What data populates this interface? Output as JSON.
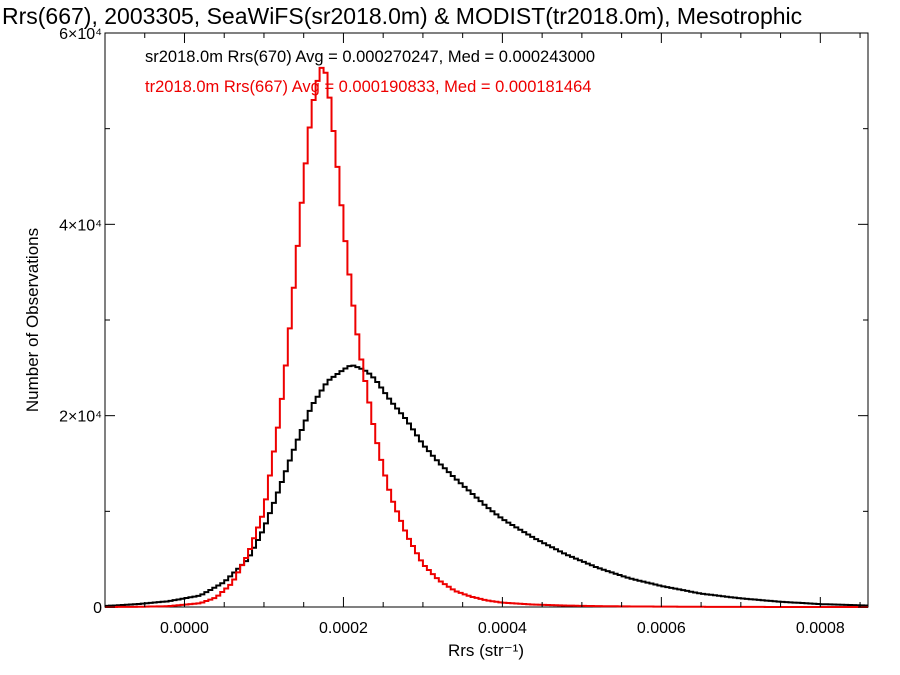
{
  "chart_data": {
    "type": "line",
    "title": "Rrs(667), 2003305, SeaWiFS(sr2018.0m) & MODIST(tr2018.0m), Mesotrophic",
    "xlabel": "Rrs (str⁻¹)",
    "ylabel": "Number of Observations",
    "xlim": [
      -0.0001,
      0.00086
    ],
    "ylim": [
      0,
      60000
    ],
    "x_ticks": [
      {
        "value": 0.0,
        "label": "0.0000"
      },
      {
        "value": 0.0002,
        "label": "0.0002"
      },
      {
        "value": 0.0004,
        "label": "0.0004"
      },
      {
        "value": 0.0006,
        "label": "0.0006"
      },
      {
        "value": 0.0008,
        "label": "0.0008"
      }
    ],
    "y_ticks": [
      {
        "value": 0,
        "label": "0"
      },
      {
        "value": 20000,
        "label": "2×10⁴"
      },
      {
        "value": 40000,
        "label": "4×10⁴"
      },
      {
        "value": 60000,
        "label": "6×10⁴"
      }
    ],
    "legend_position": "top-left",
    "grid": false,
    "series": [
      {
        "name": "sr2018.0m Rrs(670) Avg = 0.000270247, Med = 0.000243000",
        "color": "#000000",
        "step": true,
        "x": [
          -0.0001,
          -6e-05,
          -2e-05,
          2e-05,
          5e-05,
          8e-05,
          0.0001,
          0.00012,
          0.00014,
          0.00016,
          0.00018,
          0.0002,
          0.00021,
          0.00022,
          0.00023,
          0.00024,
          0.00026,
          0.00028,
          0.0003,
          0.00032,
          0.00034,
          0.00036,
          0.00038,
          0.0004,
          0.00044,
          0.00048,
          0.00052,
          0.00056,
          0.0006,
          0.00065,
          0.0007,
          0.00075,
          0.0008,
          0.00086
        ],
        "y": [
          100,
          300,
          600,
          1200,
          2600,
          5000,
          8200,
          12500,
          17000,
          21000,
          23600,
          24800,
          25300,
          25000,
          24600,
          23800,
          21500,
          19500,
          17000,
          15100,
          13500,
          12000,
          10500,
          9200,
          7200,
          5500,
          4100,
          3000,
          2200,
          1400,
          900,
          550,
          300,
          150
        ]
      },
      {
        "name": "tr2018.0m Rrs(667) Avg = 0.000190833, Med = 0.000181464",
        "color": "#ee0000",
        "step": true,
        "x": [
          -0.0001,
          -6e-05,
          -2e-05,
          2e-05,
          4e-05,
          6e-05,
          8e-05,
          0.0001,
          0.00012,
          0.00013,
          0.00014,
          0.00015,
          0.00016,
          0.00017,
          0.000175,
          0.00018,
          0.00019,
          0.0002,
          0.00021,
          0.00022,
          0.00023,
          0.00024,
          0.00025,
          0.00026,
          0.00028,
          0.0003,
          0.00032,
          0.00034,
          0.00036,
          0.00038,
          0.0004,
          0.00044,
          0.00048,
          0.00052,
          0.00056,
          0.0006,
          0.00065,
          0.0007,
          0.00075,
          0.0008,
          0.00086
        ],
        "y": [
          0,
          20,
          80,
          400,
          1000,
          2500,
          5500,
          10000,
          20000,
          27000,
          35500,
          44500,
          52000,
          56000,
          56700,
          55000,
          48000,
          40000,
          33000,
          27000,
          22500,
          18000,
          14500,
          11500,
          7500,
          4500,
          2800,
          1700,
          1100,
          700,
          450,
          250,
          150,
          90,
          60,
          40,
          20,
          10,
          5,
          0,
          0
        ]
      }
    ]
  }
}
